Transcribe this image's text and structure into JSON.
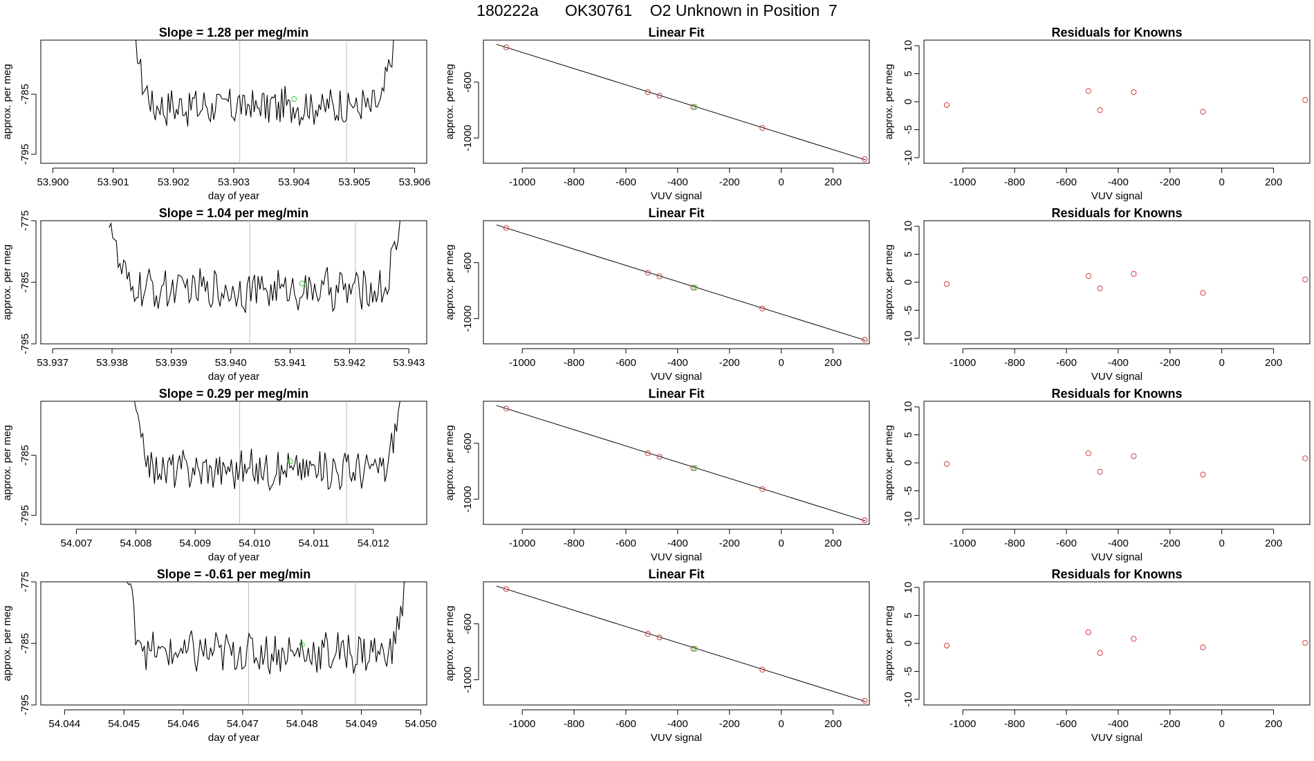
{
  "figure_title": "180222a      OK30761    O2 Unknown in Position  7",
  "colors": {
    "trace": "#000000",
    "known_point": "#d03a3a",
    "unknown_point": "#33cc33",
    "marker_line": "#bbbbbb",
    "axis": "#000000"
  },
  "chart_data": [
    {
      "row": 1,
      "timeseries": {
        "type": "line",
        "title": "Slope =  1.28  per meg/min",
        "xlabel": "day of year",
        "ylabel": "approx. per meg",
        "xlim": [
          53.8998,
          53.9062
        ],
        "ylim": [
          -796.5,
          -776
        ],
        "xticks": [
          "53.900",
          "53.901",
          "53.902",
          "53.903",
          "53.904",
          "53.905",
          "53.906"
        ],
        "yticks": [
          "-795",
          "-785"
        ],
        "trace_start": 53.90135,
        "trace_end": 53.90565,
        "trace_mean": -787.0,
        "trace_amplitude": 2.8,
        "marker_lines": [
          53.9031,
          53.90487
        ],
        "unknown_point": {
          "x": 53.904,
          "y": -785.8
        }
      },
      "linear_fit": {
        "type": "scatter",
        "title": "Linear Fit",
        "xlabel": "VUV signal",
        "ylabel": "approx. per meg",
        "xlim": [
          -1150,
          340
        ],
        "ylim": [
          -1180,
          -300
        ],
        "xticks": [
          "-1000",
          "-800",
          "-600",
          "-400",
          "-200",
          "0",
          "200"
        ],
        "yticks": [
          "-600",
          "-1000"
        ],
        "line": [
          [
            -1100,
            -330
          ],
          [
            325,
            -1155
          ]
        ],
        "knowns_x": [
          -1062,
          -515,
          -470,
          -340,
          -73,
          322
        ],
        "knowns_y": [
          -352,
          -672,
          -697,
          -778,
          -928,
          -1150
        ],
        "unknown": {
          "x": -333,
          "y": -778
        }
      },
      "residuals": {
        "type": "scatter",
        "title": "Residuals for Knowns",
        "xlabel": "VUV signal",
        "ylabel": "approx. per meg",
        "xlim": [
          -1150,
          340
        ],
        "ylim": [
          -11,
          11
        ],
        "xticks": [
          "-1000",
          "-800",
          "-600",
          "-400",
          "-200",
          "0",
          "200"
        ],
        "yticks": [
          "10",
          "5",
          "0",
          "-5",
          "-10"
        ],
        "x": [
          -1062,
          -515,
          -470,
          -340,
          -73,
          322
        ],
        "y": [
          -0.6,
          1.9,
          -1.5,
          1.7,
          -1.8,
          0.3
        ]
      }
    },
    {
      "row": 2,
      "timeseries": {
        "type": "line",
        "title": "Slope =  1.04  per meg/min",
        "xlabel": "day of year",
        "ylabel": "approx. per meg",
        "xlim": [
          53.9368,
          53.9433
        ],
        "ylim": [
          -795,
          -775
        ],
        "xticks": [
          "53.937",
          "53.938",
          "53.939",
          "53.940",
          "53.941",
          "53.942",
          "53.943"
        ],
        "yticks": [
          "-775",
          "-785",
          "-795"
        ],
        "trace_start": 53.93795,
        "trace_end": 53.94285,
        "trace_mean": -786.2,
        "trace_amplitude": 3.0,
        "marker_lines": [
          53.94032,
          53.9421
        ],
        "unknown_point": {
          "x": 53.9412,
          "y": -785.2
        }
      },
      "linear_fit": {
        "type": "scatter",
        "title": "Linear Fit",
        "xlabel": "VUV signal",
        "ylabel": "approx. per meg",
        "xlim": [
          -1150,
          340
        ],
        "ylim": [
          -1180,
          -300
        ],
        "xticks": [
          "-1000",
          "-800",
          "-600",
          "-400",
          "-200",
          "0",
          "200"
        ],
        "yticks": [
          "-600",
          "-1000"
        ],
        "line": [
          [
            -1100,
            -330
          ],
          [
            325,
            -1155
          ]
        ],
        "knowns_x": [
          -1062,
          -515,
          -470,
          -340,
          -73,
          322
        ],
        "knowns_y": [
          -352,
          -672,
          -697,
          -778,
          -928,
          -1150
        ],
        "unknown": {
          "x": -333,
          "y": -778
        }
      },
      "residuals": {
        "type": "scatter",
        "title": "Residuals for Knowns",
        "xlabel": "VUV signal",
        "ylabel": "approx. per meg",
        "xlim": [
          -1150,
          340
        ],
        "ylim": [
          -11,
          11
        ],
        "xticks": [
          "-1000",
          "-800",
          "-600",
          "-400",
          "-200",
          "0",
          "200"
        ],
        "yticks": [
          "10",
          "5",
          "0",
          "-5",
          "-10"
        ],
        "x": [
          -1062,
          -515,
          -470,
          -340,
          -73,
          322
        ],
        "y": [
          -0.3,
          1.1,
          -1.1,
          1.5,
          -1.9,
          0.5
        ]
      }
    },
    {
      "row": 3,
      "timeseries": {
        "type": "line",
        "title": "Slope =  0.29  per meg/min",
        "xlabel": "day of year",
        "ylabel": "approx. per meg",
        "xlim": [
          54.0064,
          54.0129
        ],
        "ylim": [
          -796.5,
          -776
        ],
        "xticks": [
          "54.007",
          "54.008",
          "54.009",
          "54.010",
          "54.011",
          "54.012"
        ],
        "yticks": [
          "-795",
          "-785"
        ],
        "trace_start": 54.00795,
        "trace_end": 54.01245,
        "trace_mean": -787.3,
        "trace_amplitude": 2.8,
        "marker_lines": [
          54.00975,
          54.01155
        ],
        "unknown_point": {
          "x": 54.0106,
          "y": -786.0
        }
      },
      "linear_fit": {
        "type": "scatter",
        "title": "Linear Fit",
        "xlabel": "VUV signal",
        "ylabel": "approx. per meg",
        "xlim": [
          -1150,
          340
        ],
        "ylim": [
          -1180,
          -300
        ],
        "xticks": [
          "-1000",
          "-800",
          "-600",
          "-400",
          "-200",
          "0",
          "200"
        ],
        "yticks": [
          "-600",
          "-1000"
        ],
        "line": [
          [
            -1100,
            -330
          ],
          [
            325,
            -1155
          ]
        ],
        "knowns_x": [
          -1062,
          -515,
          -470,
          -340,
          -73,
          322
        ],
        "knowns_y": [
          -352,
          -672,
          -697,
          -778,
          -928,
          -1150
        ],
        "unknown": {
          "x": -333,
          "y": -778
        }
      },
      "residuals": {
        "type": "scatter",
        "title": "Residuals for Knowns",
        "xlabel": "VUV signal",
        "ylabel": "approx. per meg",
        "xlim": [
          -1150,
          340
        ],
        "ylim": [
          -11,
          11
        ],
        "xticks": [
          "-1000",
          "-800",
          "-600",
          "-400",
          "-200",
          "0",
          "200"
        ],
        "yticks": [
          "10",
          "5",
          "0",
          "-5",
          "-10"
        ],
        "x": [
          -1062,
          -515,
          -470,
          -340,
          -73,
          322
        ],
        "y": [
          -0.2,
          1.7,
          -1.6,
          1.2,
          -2.1,
          0.8
        ]
      }
    },
    {
      "row": 4,
      "timeseries": {
        "type": "line",
        "title": "Slope =  -0.61  per meg/min",
        "xlabel": "day of year",
        "ylabel": "approx. per meg",
        "xlim": [
          54.0436,
          54.0501
        ],
        "ylim": [
          -795,
          -775
        ],
        "xticks": [
          "54.044",
          "54.045",
          "54.046",
          "54.047",
          "54.048",
          "54.049",
          "54.050"
        ],
        "yticks": [
          "-775",
          "-785",
          "-795"
        ],
        "trace_start": 54.04505,
        "trace_end": 54.04975,
        "trace_mean": -786.5,
        "trace_amplitude": 3.0,
        "marker_lines": [
          54.0471,
          54.0489
        ],
        "unknown_point": {
          "x": 54.048,
          "y": -785.2
        }
      },
      "linear_fit": {
        "type": "scatter",
        "title": "Linear Fit",
        "xlabel": "VUV signal",
        "ylabel": "approx. per meg",
        "xlim": [
          -1150,
          340
        ],
        "ylim": [
          -1180,
          -300
        ],
        "xticks": [
          "-1000",
          "-800",
          "-600",
          "-400",
          "-200",
          "0",
          "200"
        ],
        "yticks": [
          "-600",
          "-1000"
        ],
        "line": [
          [
            -1100,
            -330
          ],
          [
            325,
            -1155
          ]
        ],
        "knowns_x": [
          -1062,
          -515,
          -470,
          -340,
          -73,
          322
        ],
        "knowns_y": [
          -352,
          -672,
          -697,
          -778,
          -928,
          -1150
        ],
        "unknown": {
          "x": -333,
          "y": -778
        }
      },
      "residuals": {
        "type": "scatter",
        "title": "Residuals for Knowns",
        "xlabel": "VUV signal",
        "ylabel": "approx. per meg",
        "xlim": [
          -1150,
          340
        ],
        "ylim": [
          -11,
          11
        ],
        "xticks": [
          "-1000",
          "-800",
          "-600",
          "-400",
          "-200",
          "0",
          "200"
        ],
        "yticks": [
          "10",
          "5",
          "0",
          "-5",
          "-10"
        ],
        "x": [
          -1062,
          -515,
          -470,
          -340,
          -73,
          322
        ],
        "y": [
          -0.4,
          2.0,
          -1.7,
          0.8,
          -0.7,
          0.1
        ]
      }
    }
  ]
}
